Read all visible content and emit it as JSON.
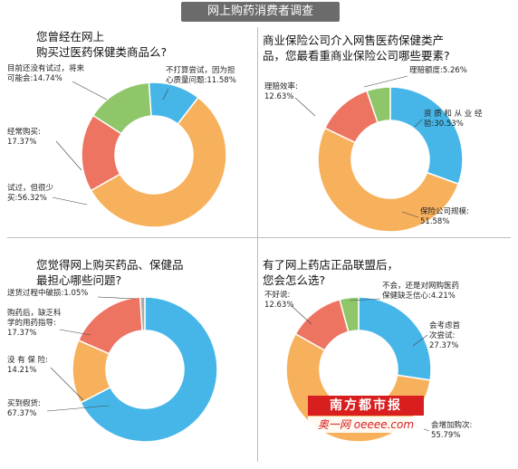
{
  "header": {
    "title": "网上购药消费者调查"
  },
  "colors": {
    "blue": "#46b6e8",
    "orange": "#f7b15c",
    "red": "#ee7462",
    "green": "#8fc66a",
    "gray": "#aaaaaa"
  },
  "watermark": {
    "brand": "南方都市报",
    "site": "奥一网 oeeee.com"
  },
  "chart_data": [
    {
      "type": "pie",
      "title": "您曾经在网上\n购买过医药保健类商品么?",
      "slices": [
        {
          "label": "不打算尝试，因为担\n心质量问题:11.58%",
          "value": 11.58,
          "color": "blue"
        },
        {
          "label": "试过，但很少\n买:56.32%",
          "value": 56.32,
          "color": "orange"
        },
        {
          "label": "经常购买:\n17.37%",
          "value": 17.37,
          "color": "red"
        },
        {
          "label": "目前还没有试过，将来\n可能会:14.74%",
          "value": 14.74,
          "color": "green"
        }
      ]
    },
    {
      "type": "pie",
      "title": "商业保险公司介入网售医药保健类产\n品，您最看重商业保险公司哪些要素?",
      "slices": [
        {
          "label": "资 质 和 从 业 经\n验:30.53%",
          "value": 30.53,
          "color": "blue"
        },
        {
          "label": "保险公司规模:\n51.58%",
          "value": 51.58,
          "color": "orange"
        },
        {
          "label": "理赔效率:\n12.63%",
          "value": 12.63,
          "color": "red"
        },
        {
          "label": "理赔额度:5.26%",
          "value": 5.26,
          "color": "green"
        }
      ]
    },
    {
      "type": "pie",
      "title": "您觉得网上购买药品、保健品\n最担心哪些问题?",
      "slices": [
        {
          "label": "买到假货:\n67.37%",
          "value": 67.37,
          "color": "blue"
        },
        {
          "label": "没 有 保 险:\n14.21%",
          "value": 14.21,
          "color": "orange"
        },
        {
          "label": "购药后，缺乏科\n学的用药指导:\n17.37%",
          "value": 17.37,
          "color": "red"
        },
        {
          "label": "送货过程中破损:1.05%",
          "value": 1.05,
          "color": "gray"
        }
      ]
    },
    {
      "type": "pie",
      "title": "有了网上药店正品联盟后，\n您会怎么选?",
      "slices": [
        {
          "label": "会考虑首\n次尝试:\n27.37%",
          "value": 27.37,
          "color": "blue"
        },
        {
          "label": "会增加购次:\n55.79%",
          "value": 55.79,
          "color": "orange"
        },
        {
          "label": "不好说:\n12.63%",
          "value": 12.63,
          "color": "red"
        },
        {
          "label": "不会，还是对网购医药\n保健缺乏信心:4.21%",
          "value": 4.21,
          "color": "green"
        }
      ]
    }
  ]
}
